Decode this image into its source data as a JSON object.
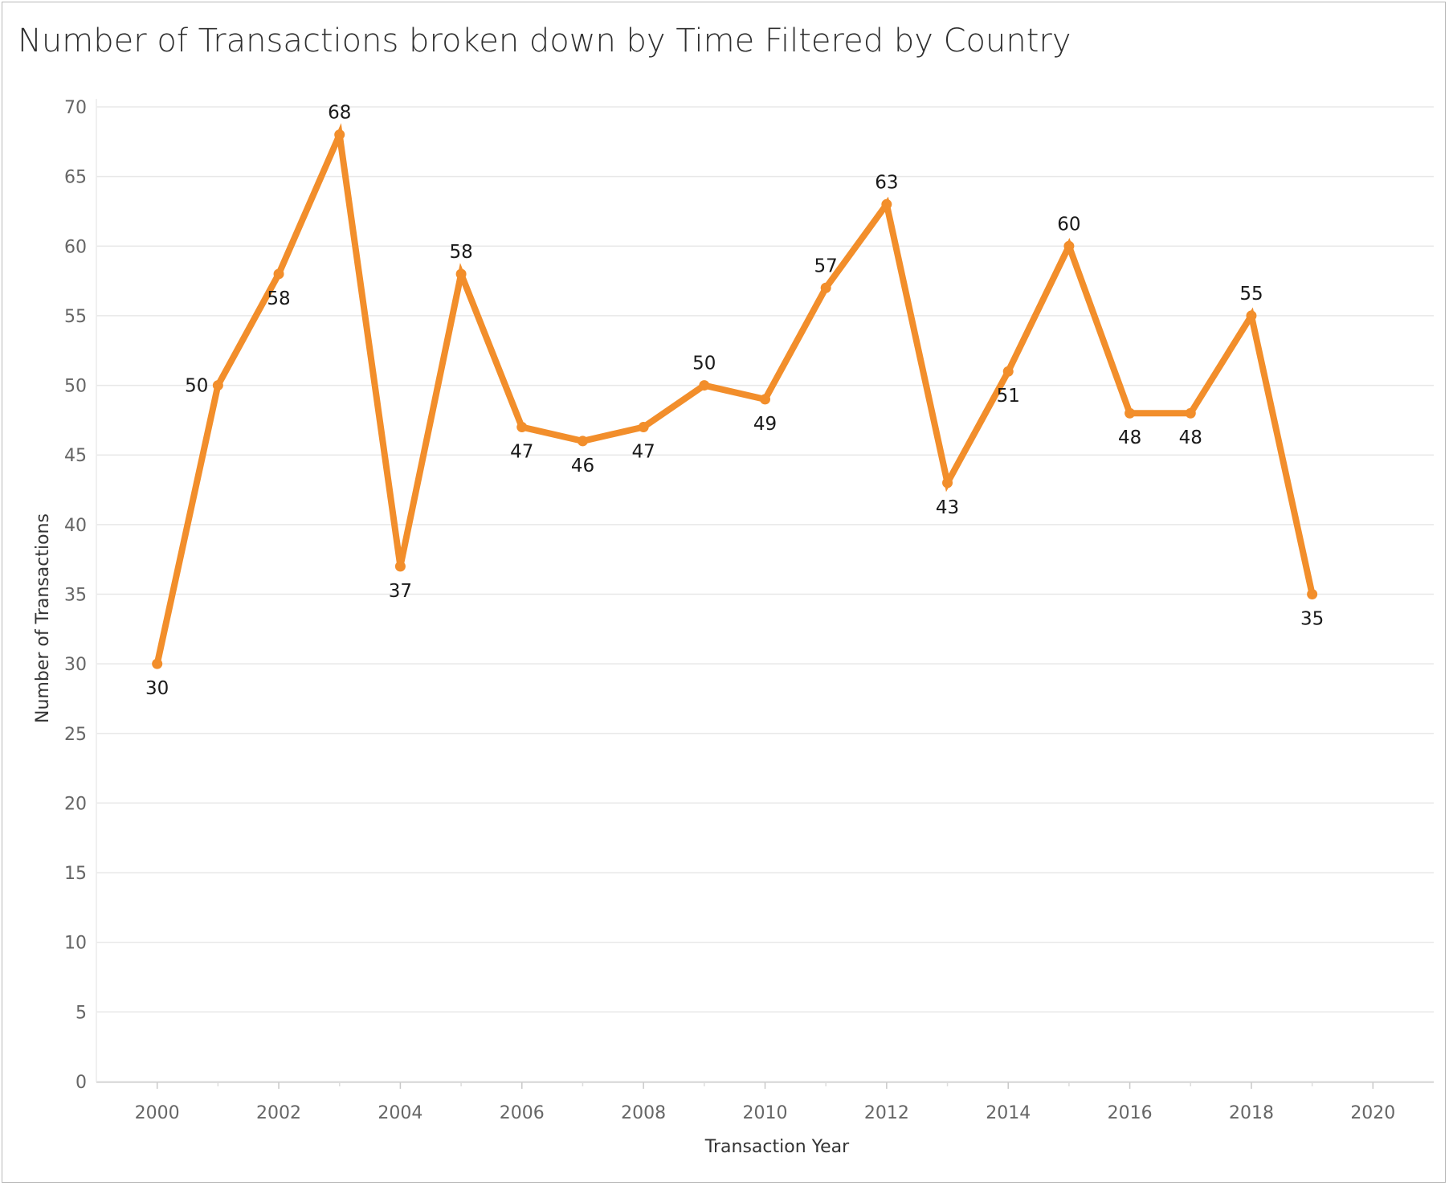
{
  "title": "Number of Transactions broken down by Time Filtered by Country",
  "chart_data": {
    "type": "line",
    "title": "Number of Transactions broken down by Time Filtered by Country",
    "xlabel": "Transaction Year",
    "ylabel": "Number of Transactions",
    "x": [
      2000,
      2001,
      2002,
      2003,
      2004,
      2005,
      2006,
      2007,
      2008,
      2009,
      2010,
      2011,
      2012,
      2013,
      2014,
      2015,
      2016,
      2017,
      2018,
      2019
    ],
    "series": [
      {
        "values": [
          30,
          50,
          58,
          68,
          37,
          58,
          47,
          46,
          47,
          50,
          49,
          57,
          63,
          43,
          51,
          60,
          48,
          48,
          55,
          35
        ],
        "color": "#f28e2b"
      }
    ],
    "label_positions": [
      "below",
      "left",
      "below",
      "above",
      "below",
      "above",
      "below",
      "below",
      "below",
      "above",
      "below",
      "above",
      "above",
      "below",
      "below",
      "above",
      "below",
      "below",
      "above",
      "below"
    ],
    "xlim": [
      1999,
      2021
    ],
    "ylim": [
      0,
      70
    ],
    "x_ticks": [
      2000,
      2002,
      2004,
      2006,
      2008,
      2010,
      2012,
      2014,
      2016,
      2018,
      2020
    ],
    "y_ticks": [
      0,
      5,
      10,
      15,
      20,
      25,
      30,
      35,
      40,
      45,
      50,
      55,
      60,
      65,
      70
    ],
    "grid": true,
    "legend": "none"
  }
}
